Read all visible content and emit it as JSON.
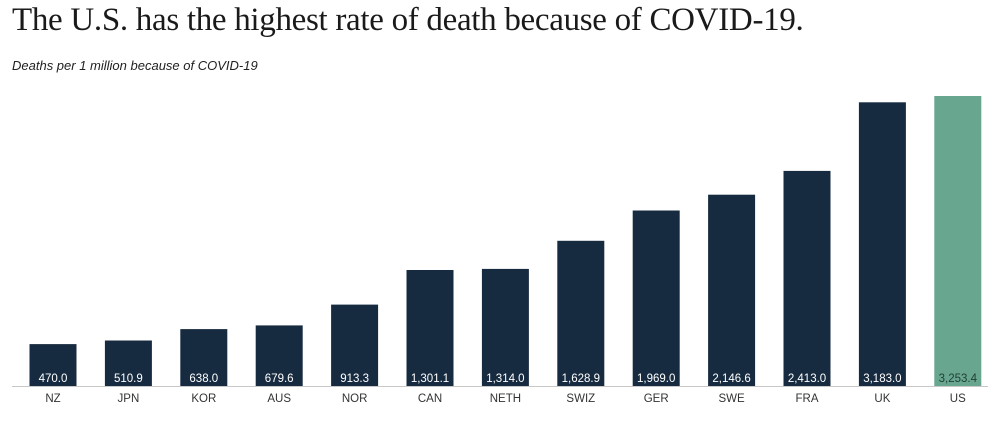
{
  "title": "The U.S. has the highest rate of death because of COVID-19.",
  "subtitle": "Deaths per 1 million because of COVID-19",
  "colors": {
    "bar": "#172b40",
    "highlight": "#69a690",
    "label_on_dark": "#ffffff",
    "label_on_highlight": "#1f3f36",
    "axis": "#c8c8c8",
    "tick": "#333333"
  },
  "chart_data": {
    "type": "bar",
    "title": "The U.S. has the highest rate of death because of COVID-19.",
    "subtitle": "Deaths per 1 million because of COVID-19",
    "xlabel": "",
    "ylabel": "",
    "categories": [
      "NZ",
      "JPN",
      "KOR",
      "AUS",
      "NOR",
      "CAN",
      "NETH",
      "SWIZ",
      "GER",
      "SWE",
      "FRA",
      "UK",
      "US"
    ],
    "values": [
      470.0,
      510.9,
      638.0,
      679.6,
      913.3,
      1301.1,
      1314.0,
      1628.9,
      1969.0,
      2146.6,
      2413.0,
      3183.0,
      3253.4
    ],
    "value_labels": [
      "470.0",
      "510.9",
      "638.0",
      "679.6",
      "913.3",
      "1,301.1",
      "1,314.0",
      "1,628.9",
      "1,969.0",
      "2,146.6",
      "2,413.0",
      "3,183.0",
      "3,253.4"
    ],
    "highlight_category": "US",
    "grid": false,
    "legend": "none"
  }
}
